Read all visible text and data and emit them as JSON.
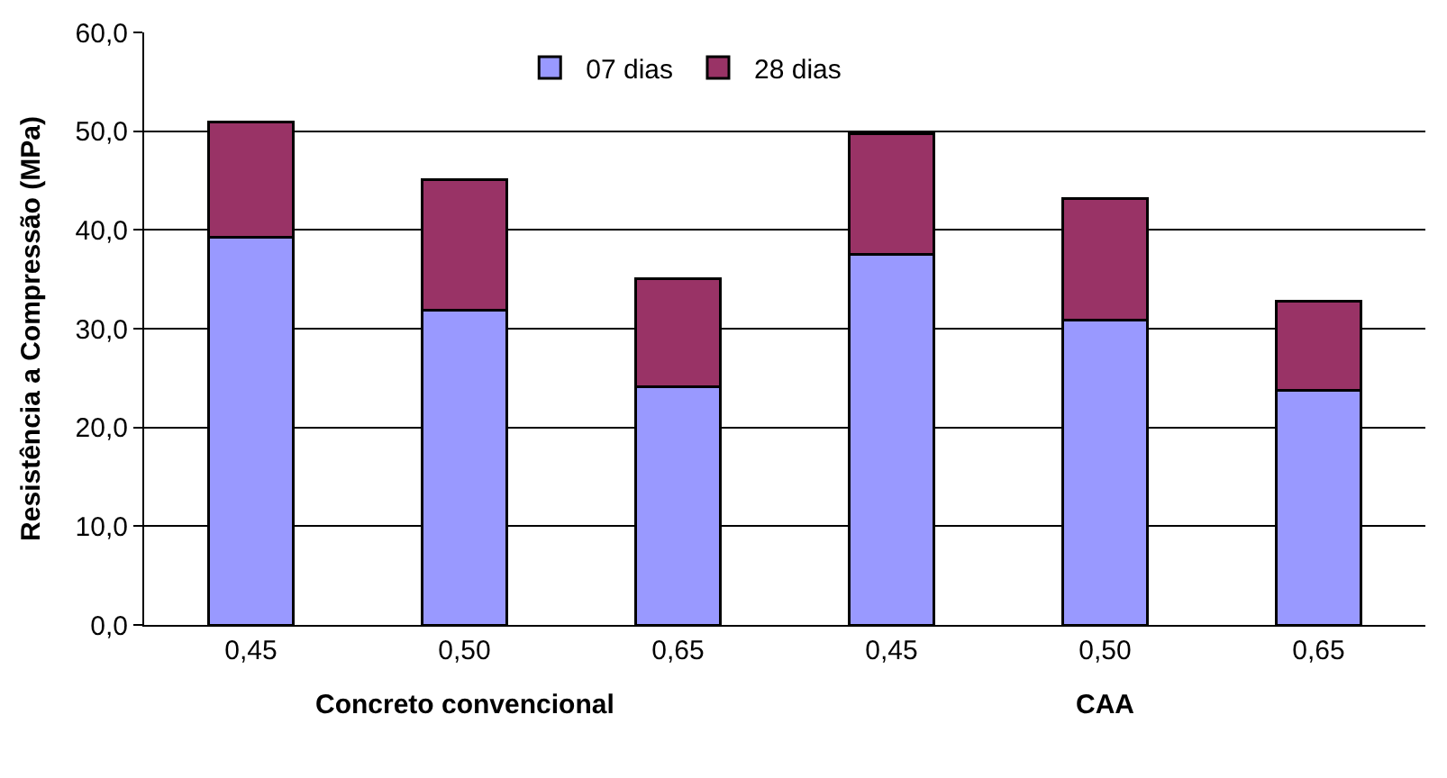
{
  "chart_data": {
    "type": "bar",
    "stacked": true,
    "categories": [
      "0,45",
      "0,50",
      "0,65",
      "0,45",
      "0,50",
      "0,65"
    ],
    "ylabel": "Resistência a Compressão (MPa)",
    "series": [
      {
        "name": "07 dias",
        "color": "#9999ff",
        "values": [
          39.3,
          31.9,
          24.1,
          37.5,
          30.9,
          23.8
        ]
      },
      {
        "name": "28 dias",
        "color": "#993366",
        "values": [
          11.6,
          13.2,
          11.0,
          12.2,
          12.3,
          9.0
        ]
      }
    ],
    "ylim": [
      0,
      60
    ],
    "yticks": [
      {
        "value": 0,
        "label": "0,0"
      },
      {
        "value": 10,
        "label": "10,0"
      },
      {
        "value": 20,
        "label": "20,0"
      },
      {
        "value": 30,
        "label": "30,0"
      },
      {
        "value": 40,
        "label": "40,0"
      },
      {
        "value": 50,
        "label": "50,0"
      },
      {
        "value": 60,
        "label": "60,0"
      }
    ],
    "grid": "y",
    "legend": "top",
    "annotations": [
      "Concreto convencional",
      "CAA"
    ]
  }
}
